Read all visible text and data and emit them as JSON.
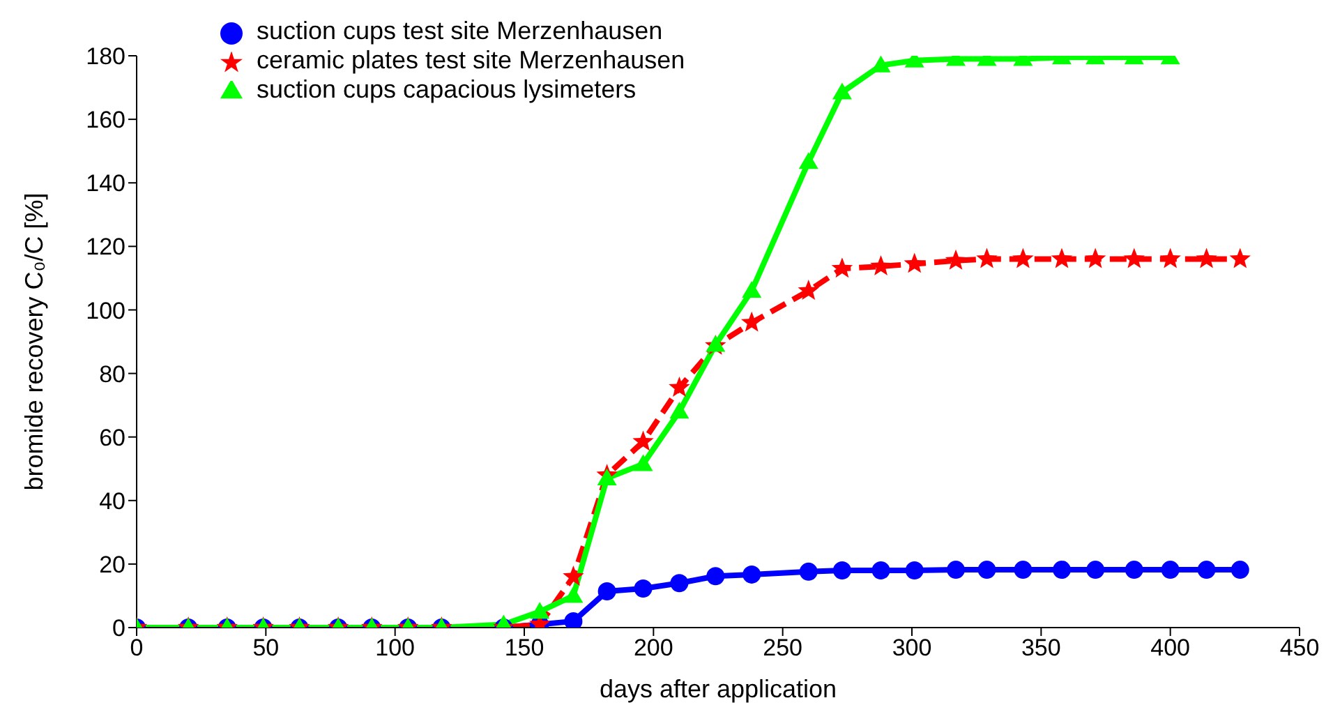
{
  "chart_data": {
    "type": "line",
    "xlabel": "days after application",
    "ylabel": "bromide recovery C₀/C [%]",
    "xlim": [
      0,
      450
    ],
    "xticks": [
      0,
      50,
      100,
      150,
      200,
      250,
      300,
      350,
      400,
      450
    ],
    "ylim": [
      0,
      180
    ],
    "yticks": [
      0,
      20,
      40,
      60,
      80,
      100,
      120,
      140,
      160,
      180
    ],
    "grid": false,
    "legend": "top left",
    "series": [
      {
        "name": "suction cups test site Merzenhausen",
        "color": "#0000ff",
        "marker": "circle",
        "line_style": "solid",
        "x": [
          0,
          20,
          35,
          49,
          63,
          78,
          91,
          105,
          118,
          142,
          156,
          169,
          182,
          196,
          210,
          224,
          238,
          260,
          273,
          288,
          301,
          317,
          329,
          343,
          358,
          371,
          386,
          400,
          414,
          427
        ],
        "values": [
          0,
          0,
          0,
          0,
          0,
          0,
          0,
          0,
          0,
          0,
          1,
          2,
          11.4,
          12.3,
          14,
          16.2,
          16.7,
          17.6,
          18,
          18,
          18,
          18.2,
          18.2,
          18.2,
          18.2,
          18.2,
          18.2,
          18.2,
          18.2,
          18.2
        ]
      },
      {
        "name": "ceramic plates test site Merzenhausen",
        "color": "#ff0000",
        "marker": "star",
        "line_style": "dashed",
        "x": [
          0,
          20,
          35,
          49,
          63,
          78,
          91,
          105,
          118,
          142,
          156,
          169,
          182,
          196,
          210,
          224,
          238,
          260,
          273,
          288,
          301,
          317,
          329,
          343,
          358,
          371,
          386,
          400,
          414,
          427
        ],
        "values": [
          0,
          0,
          0,
          0,
          0,
          0,
          0,
          0,
          0,
          0,
          1,
          16,
          48,
          58.5,
          75.5,
          88.7,
          96,
          106,
          113,
          113.7,
          114.5,
          115.5,
          116,
          116,
          116,
          116,
          116,
          116,
          116,
          116
        ]
      },
      {
        "name": "suction cups capacious lysimeters",
        "color": "#00ff00",
        "marker": "triangle",
        "line_style": "solid",
        "x": [
          0,
          20,
          35,
          49,
          63,
          78,
          91,
          105,
          118,
          142,
          156,
          169,
          182,
          196,
          210,
          224,
          238,
          260,
          273,
          288,
          301,
          317,
          329,
          343,
          358,
          371,
          386,
          400
        ],
        "values": [
          0,
          0,
          0,
          0,
          0,
          0,
          0,
          0,
          0,
          1,
          5,
          10,
          47,
          51.5,
          68,
          89,
          106,
          146.6,
          168.5,
          177,
          178.5,
          179,
          179,
          179,
          179.5,
          179.5,
          179.5,
          179.5
        ]
      }
    ]
  }
}
